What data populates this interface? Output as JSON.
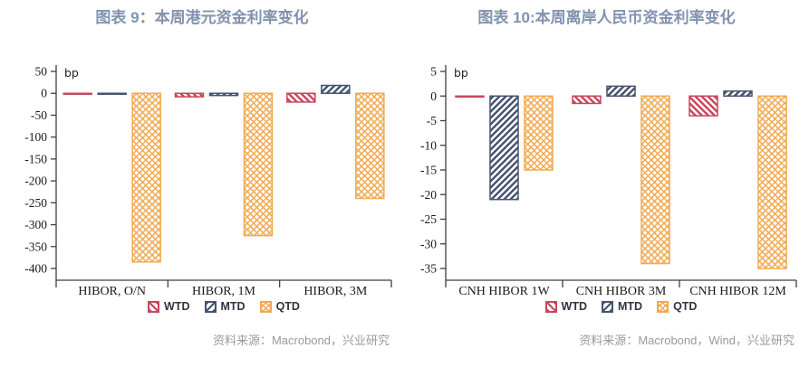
{
  "accent_colors": {
    "title": "#8093B0",
    "wtd_red": "#C8475C",
    "mtd_navy": "#46536F",
    "qtd_orange": "#F2A950",
    "axis": "#3f3f3f",
    "source_gray": "#9a9a9a"
  },
  "chart_data": [
    {
      "type": "bar",
      "title": "图表 9：本周港元资金利率变化",
      "unit_label": "bp",
      "categories": [
        "HIBOR, O/N",
        "HIBOR, 1M",
        "HIBOR, 3M"
      ],
      "series": [
        {
          "name": "WTD",
          "values": [
            -1,
            -8,
            -20
          ],
          "color": "#C8475C",
          "hatch": "backslash"
        },
        {
          "name": "MTD",
          "values": [
            0,
            -5,
            18
          ],
          "color": "#46536F",
          "hatch": "slash"
        },
        {
          "name": "QTD",
          "values": [
            -385,
            -325,
            -240
          ],
          "color": "#F2A950",
          "hatch": "cross"
        }
      ],
      "ylim": [
        -400,
        50
      ],
      "ytick_step": 50,
      "grid": "off",
      "legend_position": "bottom",
      "source": "资料来源：Macrobond，兴业研究"
    },
    {
      "type": "bar",
      "title": "图表 10:本周离岸人民币资金利率变化",
      "unit_label": "bp",
      "categories": [
        "CNH HIBOR 1W",
        "CNH HIBOR 3M",
        "CNH HIBOR 12M"
      ],
      "series": [
        {
          "name": "WTD",
          "values": [
            0,
            -1.5,
            -4
          ],
          "color": "#C8475C",
          "hatch": "backslash"
        },
        {
          "name": "MTD",
          "values": [
            -21,
            2,
            1
          ],
          "color": "#46536F",
          "hatch": "slash"
        },
        {
          "name": "QTD",
          "values": [
            -15,
            -34,
            -35
          ],
          "color": "#F2A950",
          "hatch": "cross"
        }
      ],
      "ylim": [
        -35,
        5
      ],
      "ytick_step": 5,
      "grid": "off",
      "legend_position": "bottom",
      "source": "资料来源：Macrobond，Wind，兴业研究"
    }
  ]
}
